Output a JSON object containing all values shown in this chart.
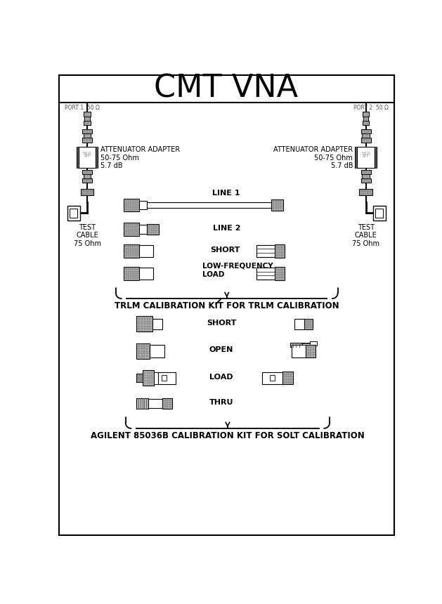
{
  "title": "CMT VNA",
  "title_fontsize": 32,
  "port1_label": "PORT 1  50 Ω",
  "port2_label": "PORT 2  50 Ω",
  "attenuator_label_left": "ATTENUATOR ADAPTER\n50-75 Ohm\n5.7 dB",
  "attenuator_label_right": "ATTENUATOR ADAPTER\n50-75 Ohm\n5.7 dB",
  "test_cable_label": "TEST\nCABLE\n75 Ohm",
  "section1_items": [
    "LINE 1",
    "LINE 2",
    "SHORT",
    "LOW-FREQUENCY\nLOAD"
  ],
  "section1_footer": "TRLM CALIBRATION KIT FOR TRLM CALIBRATION",
  "section2_items": [
    "SHORT",
    "OPEN",
    "LOAD",
    "THRU"
  ],
  "section2_footer": "AGILENT 85036B CALIBRATION KIT FOR SOLT CALIBRATION",
  "bg_color": "#ffffff",
  "gray_knurl": "#b0b0b0",
  "gray_dark": "#888888",
  "gray_med": "#aaaaaa"
}
